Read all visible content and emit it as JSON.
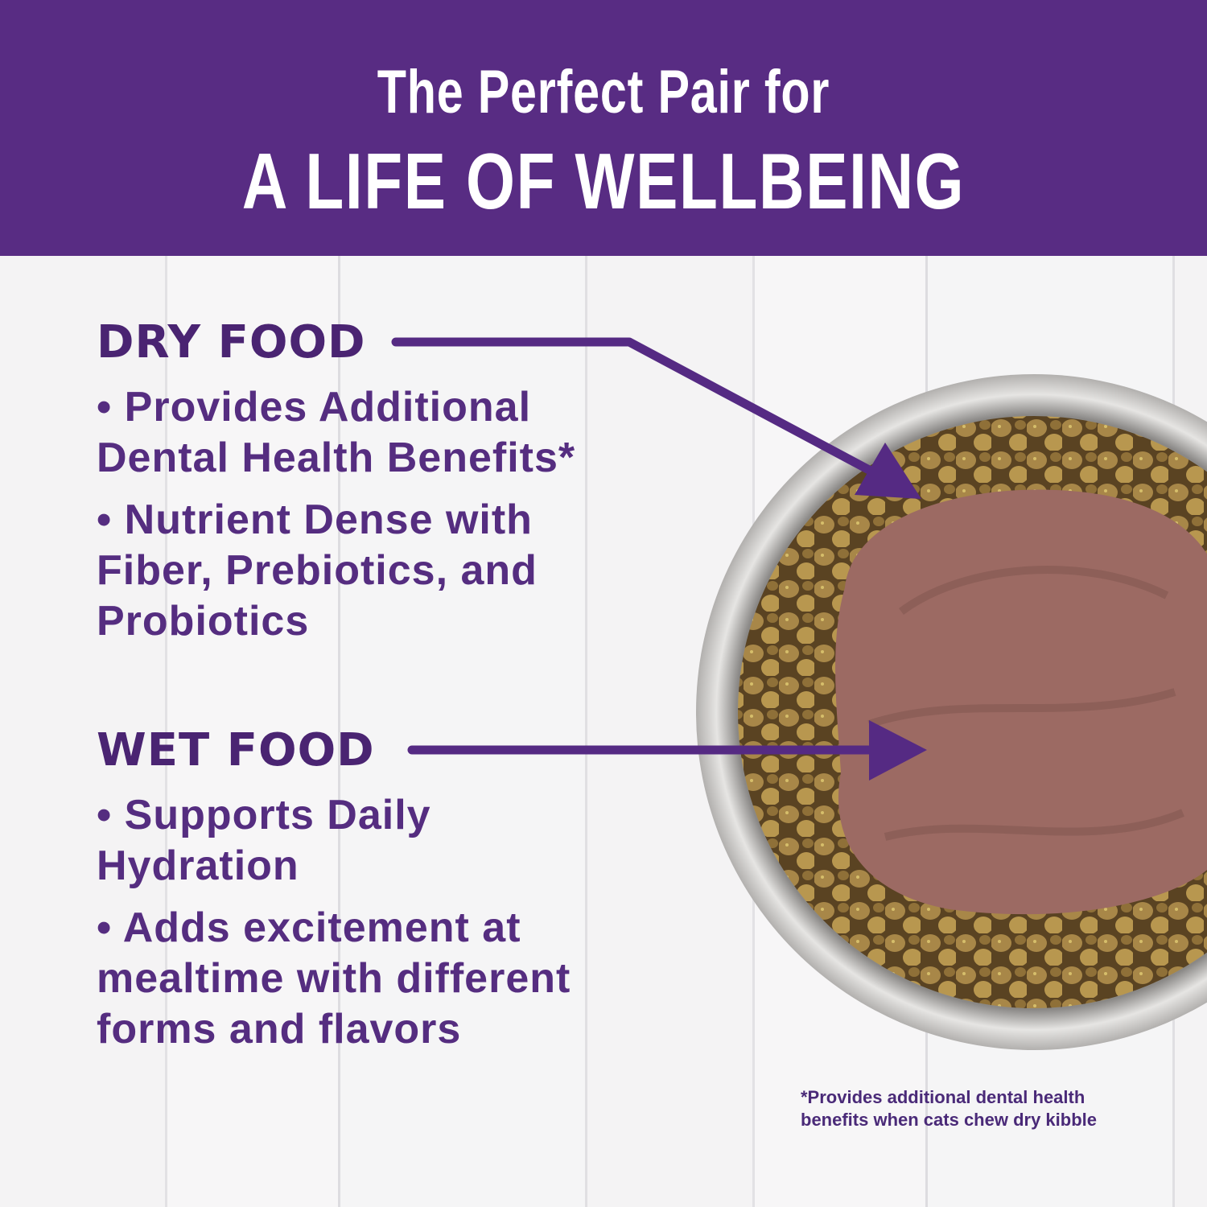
{
  "header": {
    "line1": "The Perfect Pair for",
    "line2": "A LIFE OF WELLBEING"
  },
  "dry_food": {
    "title": "DRY FOOD",
    "bullets": [
      "• Provides Additional Dental Health Benefits*",
      "• Nutrient Dense with Fiber, Prebiotics, and Probiotics"
    ]
  },
  "wet_food": {
    "title": "WET FOOD",
    "bullets": [
      "• Supports Daily Hydration",
      "• Adds excitement at mealtime with different forms and flavors"
    ]
  },
  "footnote": "*Provides additional dental health benefits when cats chew dry kibble",
  "colors": {
    "brand_purple": "#582c83",
    "text_purple": "#4a2472"
  }
}
